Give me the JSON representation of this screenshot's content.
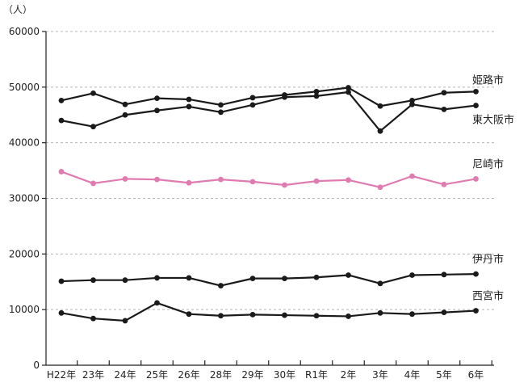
{
  "chart_data": {
    "type": "line",
    "ylabel": "（人）",
    "ylim": [
      0,
      60000
    ],
    "yticks": [
      0,
      10000,
      20000,
      30000,
      40000,
      50000,
      60000
    ],
    "grid": true,
    "categories": [
      "H22年",
      "23年",
      "24年",
      "25年",
      "26年",
      "28年",
      "29年",
      "30年",
      "R1年",
      "2年",
      "3年",
      "4年",
      "5年",
      "6年"
    ],
    "series": [
      {
        "name": "姫路市",
        "color": "#1a1a1a",
        "values": [
          47600,
          48900,
          46900,
          48000,
          47800,
          46800,
          48100,
          48600,
          49200,
          49900,
          46600,
          47600,
          49000,
          49200
        ]
      },
      {
        "name": "東大阪市",
        "color": "#1a1a1a",
        "values": [
          44000,
          42900,
          45000,
          45800,
          46500,
          45500,
          46800,
          48200,
          48400,
          49100,
          42100,
          46900,
          46000,
          46700
        ]
      },
      {
        "name": "尼崎市",
        "color": "#e07bb1",
        "values": [
          34800,
          32700,
          33500,
          33400,
          32800,
          33400,
          33000,
          32400,
          33100,
          33300,
          32000,
          34000,
          32500,
          33500
        ]
      },
      {
        "name": "伊丹市",
        "color": "#1a1a1a",
        "values": [
          15100,
          15300,
          15300,
          15700,
          15700,
          14300,
          15600,
          15600,
          15800,
          16200,
          14700,
          16200,
          16300,
          16400
        ]
      },
      {
        "name": "西宮市",
        "color": "#1a1a1a",
        "values": [
          9400,
          8400,
          8000,
          11200,
          9200,
          8900,
          9100,
          9000,
          8900,
          8800,
          9400,
          9200,
          9500,
          9800
        ]
      }
    ]
  }
}
